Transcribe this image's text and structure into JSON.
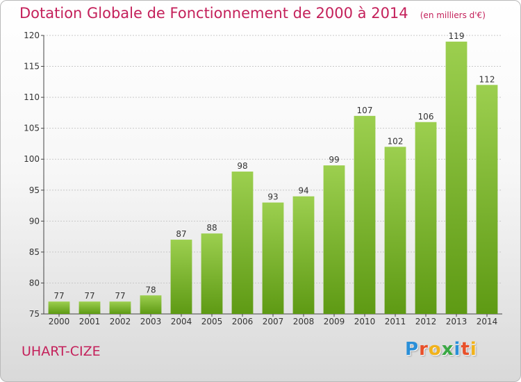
{
  "header": {
    "title": "Dotation Globale de Fonctionnement de 2000 à 2014",
    "subtitle": "(en milliers d'€)"
  },
  "footer": {
    "place_name": "UHART-CIZE",
    "logo": {
      "letters": [
        "P",
        "r",
        "o",
        "x",
        "i",
        "t",
        "i"
      ],
      "colors": [
        "#2a8fd8",
        "#e8502a",
        "#f1b21b",
        "#3aa844",
        "#2a8fd8",
        "#e8502a",
        "#f1b21b"
      ]
    }
  },
  "colors": {
    "bar_top": "#9ccf4f",
    "bar_bottom": "#5e9a14",
    "title": "#c4205a",
    "axis": "#444444"
  },
  "chart_data": {
    "type": "bar",
    "categories": [
      "2000",
      "2001",
      "2002",
      "2003",
      "2004",
      "2005",
      "2006",
      "2007",
      "2008",
      "2009",
      "2010",
      "2011",
      "2012",
      "2013",
      "2014"
    ],
    "values": [
      77,
      77,
      77,
      78,
      87,
      88,
      98,
      93,
      94,
      99,
      107,
      102,
      106,
      119,
      112
    ],
    "data_labels": [
      "77",
      "77",
      "77",
      "78",
      "87",
      "88",
      "98",
      "93",
      "94",
      "99",
      "107",
      "102",
      "106",
      "119",
      "112"
    ],
    "yticks": [
      "75",
      "80",
      "85",
      "90",
      "95",
      "100",
      "105",
      "110",
      "115",
      "120"
    ],
    "ylim": [
      75,
      120
    ],
    "grid": true,
    "title": "Dotation Globale de Fonctionnement de 2000 à 2014",
    "xlabel": "",
    "ylabel": ""
  }
}
